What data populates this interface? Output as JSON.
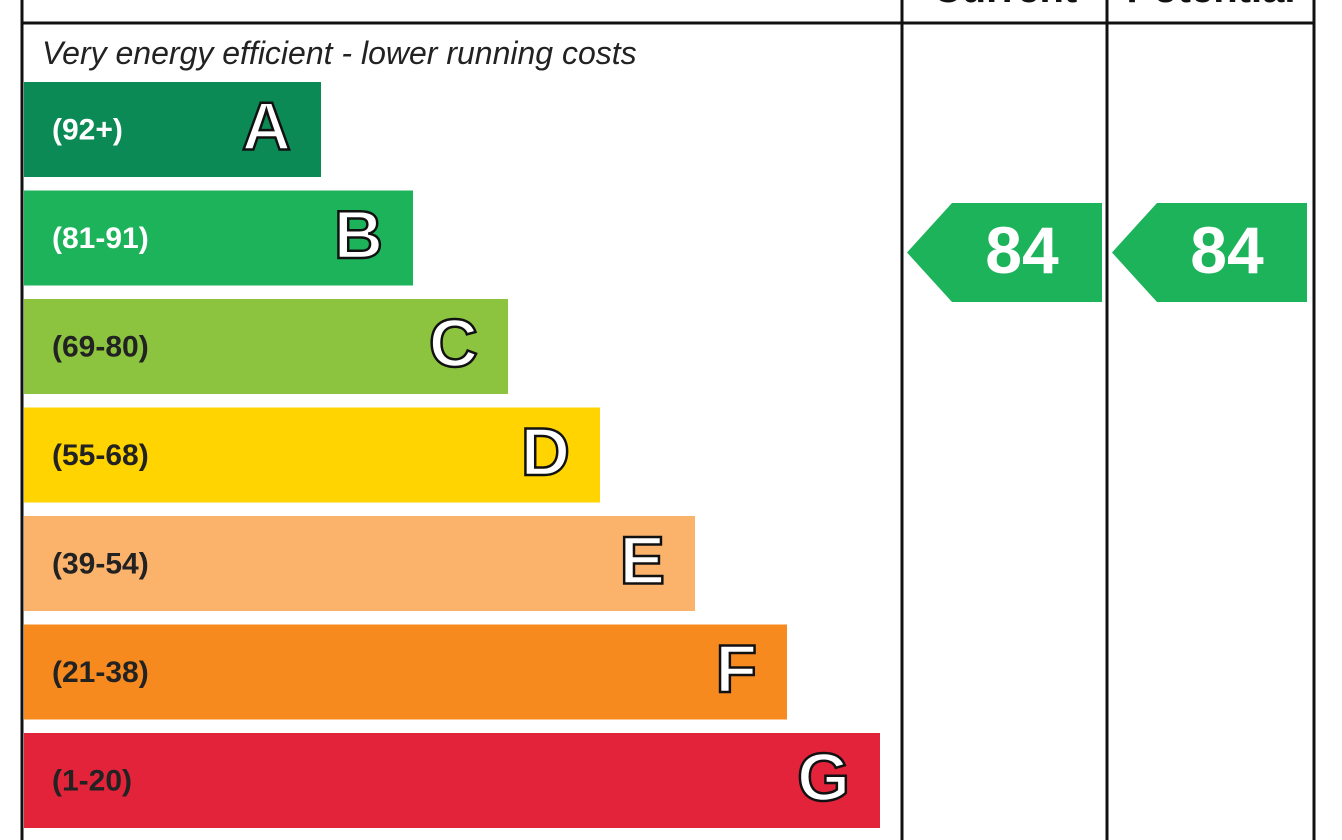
{
  "header": {
    "current": "Current",
    "potential": "Potential"
  },
  "top_note": "Very energy efficient - lower running costs",
  "bands": [
    {
      "range": "(92+)",
      "letter": "A",
      "color": "#0c8a55",
      "range_color": "#ffffff"
    },
    {
      "range": "(81-91)",
      "letter": "B",
      "color": "#1cb35b",
      "range_color": "#ffffff"
    },
    {
      "range": "(69-80)",
      "letter": "C",
      "color": "#8cc43f",
      "range_color": "#222222"
    },
    {
      "range": "(55-68)",
      "letter": "D",
      "color": "#ffd400",
      "range_color": "#222222"
    },
    {
      "range": "(39-54)",
      "letter": "E",
      "color": "#fbb36c",
      "range_color": "#222222"
    },
    {
      "range": "(21-38)",
      "letter": "F",
      "color": "#f68a1f",
      "range_color": "#222222"
    },
    {
      "range": "(1-20)",
      "letter": "G",
      "color": "#e3233a",
      "range_color": "#222222"
    }
  ],
  "current": {
    "value": "84",
    "color": "#1cb35b"
  },
  "potential": {
    "value": "84",
    "color": "#1cb35b"
  }
}
